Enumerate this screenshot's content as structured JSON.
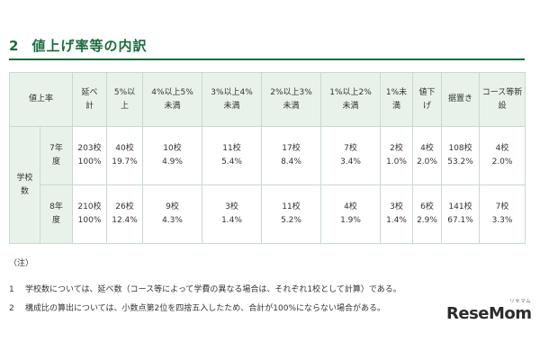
{
  "heading": {
    "number": "2",
    "title": "値上げ率等の内訳"
  },
  "table": {
    "corner": "値上率",
    "columns": [
      [
        "延べ",
        "計"
      ],
      [
        "5%以",
        "上"
      ],
      [
        "4%以上5%",
        "未満"
      ],
      [
        "3%以上4%",
        "未満"
      ],
      [
        "2%以上3%",
        "未満"
      ],
      [
        "1%以上2%",
        "未満"
      ],
      [
        "1%未",
        "満"
      ],
      [
        "値下",
        "げ"
      ],
      [
        "据置き"
      ],
      [
        "コース等新",
        "設"
      ]
    ],
    "row_group": [
      "学校",
      "数"
    ],
    "rows": [
      {
        "year": [
          "7年",
          "度"
        ],
        "cells": [
          [
            "203校",
            "100%"
          ],
          [
            "40校",
            "19.7%"
          ],
          [
            "10校",
            "4.9%"
          ],
          [
            "11校",
            "5.4%"
          ],
          [
            "17校",
            "8.4%"
          ],
          [
            "7校",
            "3.4%"
          ],
          [
            "2校",
            "1.0%"
          ],
          [
            "4校",
            "2.0%"
          ],
          [
            "108校",
            "53.2%"
          ],
          [
            "4校",
            "2.0%"
          ]
        ]
      },
      {
        "year": [
          "8年",
          "度"
        ],
        "cells": [
          [
            "210校",
            "100%"
          ],
          [
            "26校",
            "12.4%"
          ],
          [
            "9校",
            "4.3%"
          ],
          [
            "3校",
            "1.4%"
          ],
          [
            "11校",
            "5.2%"
          ],
          [
            "4校",
            "1.9%"
          ],
          [
            "3校",
            "1.4%"
          ],
          [
            "6校",
            "2.9%"
          ],
          [
            "141校",
            "67.1%"
          ],
          [
            "7校",
            "3.3%"
          ]
        ]
      }
    ]
  },
  "notes": {
    "title": "（注）",
    "items": [
      {
        "num": "1",
        "text": "学校数については、延べ数（コース等によって学費の異なる場合は、それぞれ1校として計算）である。"
      },
      {
        "num": "2",
        "text": "構成比の算出については、小数点第2位を四捨五入したため、合計が100%にならない場合がある。"
      }
    ]
  },
  "logo": {
    "text": "ReseMom",
    "kana": "リセマム"
  },
  "colors": {
    "accent": "#1a6b3e",
    "header_bg": "#e9f2ea",
    "border": "#c8d9cc"
  }
}
